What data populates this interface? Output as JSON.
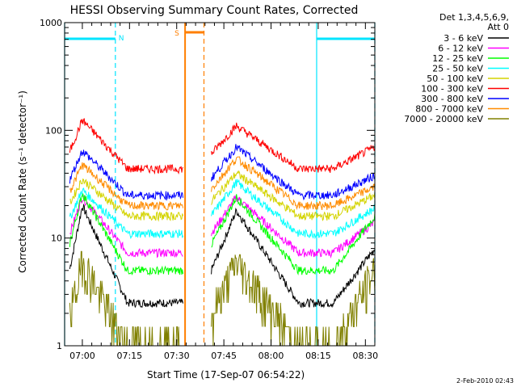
{
  "timestamp": "2-Feb-2010 02:43",
  "detector_info": {
    "line1": "Det 1,3,4,5,6,9,",
    "line2": "Att 0"
  },
  "colors": {
    "saa_night": "#00e5ff",
    "flare": "#ff7f00",
    "axis": "#000000"
  },
  "chart_data": {
    "type": "line",
    "title": "HESSI Observing Summary Count Rates, Corrected",
    "xlabel": "Start Time (17-Sep-07 06:54:22)",
    "ylabel": "Corrected Count Rate (s⁻¹ detector⁻¹)",
    "yscale": "log",
    "ylim": [
      1,
      1000
    ],
    "xlim": [
      "06:54:22",
      "08:33:00"
    ],
    "y_ticks": [
      "1",
      "10",
      "100",
      "1000"
    ],
    "x_ticks": [
      "07:00",
      "07:15",
      "07:30",
      "07:45",
      "08:00",
      "08:15",
      "08:30"
    ],
    "grid": false,
    "legend_position": "top-right",
    "markers": [
      {
        "label": "N",
        "start": "06:54:22",
        "end": "07:10:30",
        "color": "#00e5ff"
      },
      {
        "label": "S",
        "start": "07:32:40",
        "end": "07:38:40",
        "color": "#ff7f00"
      },
      {
        "label": "",
        "start": "08:14:30",
        "end": "08:33:00",
        "color": "#00e5ff"
      }
    ],
    "gap": {
      "start": "07:32:40",
      "end": "07:41:00"
    },
    "segments": [
      {
        "start": "06:56:00",
        "end": "07:32:00",
        "peak_time": "07:00:00"
      },
      {
        "start": "07:41:00",
        "end": "08:33:00",
        "peak_time": "07:49:00"
      }
    ],
    "series": [
      {
        "name": "3 - 6 keV",
        "color": "#000000",
        "values": [
          20,
          2.5,
          18,
          2.5,
          8
        ]
      },
      {
        "name": "6 - 12 keV",
        "color": "#ff00ff",
        "values": [
          24,
          7.3,
          24,
          7.3,
          14
        ]
      },
      {
        "name": "12 - 25 keV",
        "color": "#00ff00",
        "values": [
          26,
          5,
          24,
          5,
          16
        ]
      },
      {
        "name": "25 - 50 keV",
        "color": "#00ffff",
        "values": [
          28,
          11,
          33,
          11,
          19
        ]
      },
      {
        "name": "50 - 100 keV",
        "color": "#d4d400",
        "values": [
          35,
          16,
          40,
          16,
          25
        ]
      },
      {
        "name": "100 - 300 keV",
        "color": "#ff0000",
        "values": [
          125,
          44,
          110,
          44,
          70
        ]
      },
      {
        "name": "300 - 800 keV",
        "color": "#0000ff",
        "values": [
          65,
          25,
          70,
          25,
          38
        ]
      },
      {
        "name": "800 - 7000 keV",
        "color": "#ff8c00",
        "values": [
          48,
          20,
          55,
          20,
          30
        ]
      },
      {
        "name": "7000 - 20000 keV",
        "color": "#808000",
        "values": [
          6,
          1,
          6,
          1,
          5
        ]
      }
    ]
  }
}
